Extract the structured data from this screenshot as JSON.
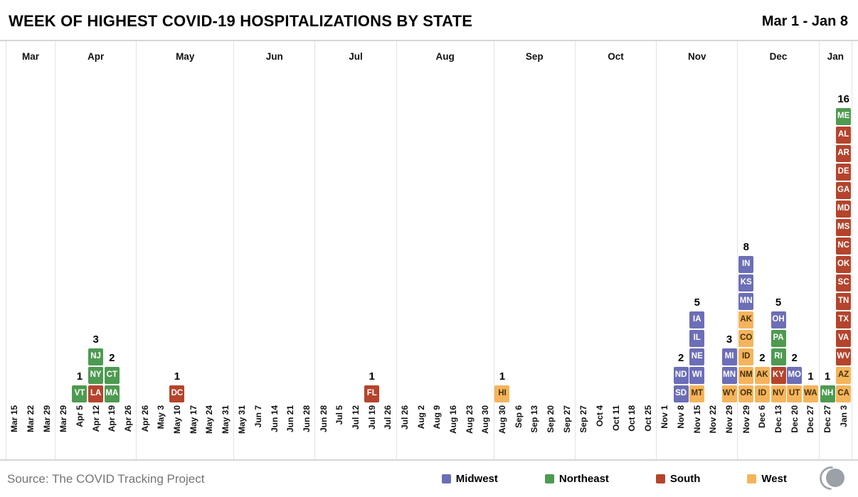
{
  "header": {
    "title": "WEEK OF HIGHEST COVID-19 HOSPITALIZATIONS BY STATE",
    "date_range": "Mar 1 - Jan 8"
  },
  "footer": {
    "source": "Source: The COVID Tracking Project"
  },
  "colors": {
    "midwest": "#6c6eb7",
    "northeast": "#4e9a51",
    "south": "#b5442c",
    "west": "#f5b45c",
    "west_text": "#45300a",
    "tile_text": "#ffffff"
  },
  "legend": {
    "items": [
      {
        "label": "Midwest",
        "region": "midwest"
      },
      {
        "label": "Northeast",
        "region": "northeast"
      },
      {
        "label": "South",
        "region": "south"
      },
      {
        "label": "West",
        "region": "west"
      }
    ]
  },
  "chart_data": {
    "type": "heatmap",
    "description": "Timeline of weekly columns; each column stacks unit tiles of state abbreviations colored by region, with the count of states labeled above each stack.",
    "legend_position": "bottom",
    "months": [
      {
        "label": "Mar",
        "weeks": [
          {
            "date": "Mar 15"
          },
          {
            "date": "Mar 22"
          },
          {
            "date": "Mar 29"
          }
        ]
      },
      {
        "label": "Apr",
        "weeks": [
          {
            "date": "Mar 29"
          },
          {
            "date": "Apr 5",
            "count": "1",
            "states": [
              {
                "abbr": "VT",
                "region": "northeast"
              }
            ]
          },
          {
            "date": "Apr 12",
            "count": "3",
            "states": [
              {
                "abbr": "NJ",
                "region": "northeast"
              },
              {
                "abbr": "NY",
                "region": "northeast"
              },
              {
                "abbr": "LA",
                "region": "south"
              }
            ]
          },
          {
            "date": "Apr 19",
            "count": "2",
            "states": [
              {
                "abbr": "CT",
                "region": "northeast"
              },
              {
                "abbr": "MA",
                "region": "northeast"
              }
            ]
          },
          {
            "date": "Apr 26"
          }
        ]
      },
      {
        "label": "May",
        "weeks": [
          {
            "date": "Apr 26"
          },
          {
            "date": "May 3"
          },
          {
            "date": "May 10",
            "count": "1",
            "states": [
              {
                "abbr": "DC",
                "region": "south"
              }
            ]
          },
          {
            "date": "May 17"
          },
          {
            "date": "May 24"
          },
          {
            "date": "May 31"
          }
        ]
      },
      {
        "label": "Jun",
        "weeks": [
          {
            "date": "May 31"
          },
          {
            "date": "Jun 7"
          },
          {
            "date": "Jun 14"
          },
          {
            "date": "Jun 21"
          },
          {
            "date": "Jun 28"
          }
        ]
      },
      {
        "label": "Jul",
        "weeks": [
          {
            "date": "Jun 28"
          },
          {
            "date": "Jul 5"
          },
          {
            "date": "Jul 12"
          },
          {
            "date": "Jul 19",
            "count": "1",
            "states": [
              {
                "abbr": "FL",
                "region": "south"
              }
            ]
          },
          {
            "date": "Jul 26"
          }
        ]
      },
      {
        "label": "Aug",
        "weeks": [
          {
            "date": "Jul 26"
          },
          {
            "date": "Aug 2"
          },
          {
            "date": "Aug 9"
          },
          {
            "date": "Aug 16"
          },
          {
            "date": "Aug 23"
          },
          {
            "date": "Aug 30"
          }
        ]
      },
      {
        "label": "Sep",
        "weeks": [
          {
            "date": "Aug 30",
            "count": "1",
            "states": [
              {
                "abbr": "HI",
                "region": "west"
              }
            ]
          },
          {
            "date": "Sep 6"
          },
          {
            "date": "Sep 13"
          },
          {
            "date": "Sep 20"
          },
          {
            "date": "Sep 27"
          }
        ]
      },
      {
        "label": "Oct",
        "weeks": [
          {
            "date": "Sep 27"
          },
          {
            "date": "Oct 4"
          },
          {
            "date": "Oct 11"
          },
          {
            "date": "Oct 18"
          },
          {
            "date": "Oct 25"
          }
        ]
      },
      {
        "label": "Nov",
        "weeks": [
          {
            "date": "Nov 1"
          },
          {
            "date": "Nov 8",
            "count": "2",
            "states": [
              {
                "abbr": "ND",
                "region": "midwest"
              },
              {
                "abbr": "SD",
                "region": "midwest"
              }
            ]
          },
          {
            "date": "Nov 15",
            "count": "5",
            "states": [
              {
                "abbr": "IA",
                "region": "midwest"
              },
              {
                "abbr": "IL",
                "region": "midwest"
              },
              {
                "abbr": "NE",
                "region": "midwest"
              },
              {
                "abbr": "WI",
                "region": "midwest"
              },
              {
                "abbr": "MT",
                "region": "west"
              }
            ]
          },
          {
            "date": "Nov 22"
          },
          {
            "date": "Nov 29",
            "count": "3",
            "states": [
              {
                "abbr": "MI",
                "region": "midwest"
              },
              {
                "abbr": "MN",
                "region": "midwest"
              },
              {
                "abbr": "WY",
                "region": "west"
              }
            ]
          }
        ]
      },
      {
        "label": "Dec",
        "weeks": [
          {
            "date": "Nov 29",
            "count": "8",
            "states": [
              {
                "abbr": "IN",
                "region": "midwest"
              },
              {
                "abbr": "KS",
                "region": "midwest"
              },
              {
                "abbr": "MN",
                "region": "midwest"
              },
              {
                "abbr": "AK",
                "region": "west"
              },
              {
                "abbr": "CO",
                "region": "west"
              },
              {
                "abbr": "ID",
                "region": "west"
              },
              {
                "abbr": "NM",
                "region": "west"
              },
              {
                "abbr": "OR",
                "region": "west"
              }
            ]
          },
          {
            "date": "Dec 6",
            "count": "2",
            "states": [
              {
                "abbr": "AK",
                "region": "west"
              },
              {
                "abbr": "ID",
                "region": "west"
              }
            ]
          },
          {
            "date": "Dec 13",
            "count": "5",
            "states": [
              {
                "abbr": "OH",
                "region": "midwest"
              },
              {
                "abbr": "PA",
                "region": "northeast"
              },
              {
                "abbr": "RI",
                "region": "northeast"
              },
              {
                "abbr": "KY",
                "region": "south"
              },
              {
                "abbr": "NV",
                "region": "west"
              }
            ]
          },
          {
            "date": "Dec 20",
            "count": "2",
            "states": [
              {
                "abbr": "MO",
                "region": "midwest"
              },
              {
                "abbr": "UT",
                "region": "west"
              }
            ]
          },
          {
            "date": "Dec 27",
            "count": "1",
            "states": [
              {
                "abbr": "WA",
                "region": "west"
              }
            ]
          }
        ]
      },
      {
        "label": "Jan",
        "weeks": [
          {
            "date": "Dec 27",
            "count": "1",
            "states": [
              {
                "abbr": "NH",
                "region": "northeast"
              }
            ]
          },
          {
            "date": "Jan 3",
            "count": "16",
            "states": [
              {
                "abbr": "ME",
                "region": "northeast"
              },
              {
                "abbr": "AL",
                "region": "south"
              },
              {
                "abbr": "AR",
                "region": "south"
              },
              {
                "abbr": "DE",
                "region": "south"
              },
              {
                "abbr": "GA",
                "region": "south"
              },
              {
                "abbr": "MD",
                "region": "south"
              },
              {
                "abbr": "MS",
                "region": "south"
              },
              {
                "abbr": "NC",
                "region": "south"
              },
              {
                "abbr": "OK",
                "region": "south"
              },
              {
                "abbr": "SC",
                "region": "south"
              },
              {
                "abbr": "TN",
                "region": "south"
              },
              {
                "abbr": "TX",
                "region": "south"
              },
              {
                "abbr": "VA",
                "region": "south"
              },
              {
                "abbr": "WV",
                "region": "south"
              },
              {
                "abbr": "AZ",
                "region": "west"
              },
              {
                "abbr": "CA",
                "region": "west"
              }
            ]
          }
        ]
      }
    ]
  }
}
